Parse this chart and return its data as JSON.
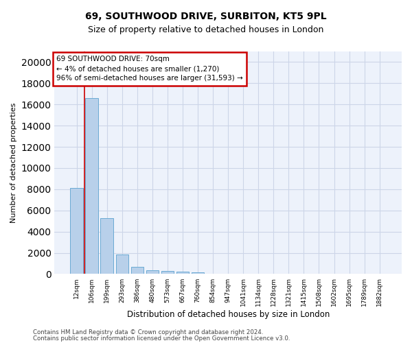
{
  "title1": "69, SOUTHWOOD DRIVE, SURBITON, KT5 9PL",
  "title2": "Size of property relative to detached houses in London",
  "xlabel": "Distribution of detached houses by size in London",
  "ylabel": "Number of detached properties",
  "categories": [
    "12sqm",
    "106sqm",
    "199sqm",
    "293sqm",
    "386sqm",
    "480sqm",
    "573sqm",
    "667sqm",
    "760sqm",
    "854sqm",
    "947sqm",
    "1041sqm",
    "1134sqm",
    "1228sqm",
    "1321sqm",
    "1415sqm",
    "1508sqm",
    "1602sqm",
    "1695sqm",
    "1789sqm",
    "1882sqm"
  ],
  "values": [
    8100,
    16600,
    5300,
    1850,
    700,
    350,
    280,
    220,
    180,
    0,
    0,
    0,
    0,
    0,
    0,
    0,
    0,
    0,
    0,
    0,
    0
  ],
  "bar_color": "#b8d0ea",
  "bar_edge_color": "#6aaad4",
  "annotation_text_line1": "69 SOUTHWOOD DRIVE: 70sqm",
  "annotation_text_line2": "← 4% of detached houses are smaller (1,270)",
  "annotation_text_line3": "96% of semi-detached houses are larger (31,593) →",
  "annotation_box_color": "#ffffff",
  "annotation_box_edge_color": "#cc0000",
  "red_line_x": 0.5,
  "ylim": [
    0,
    21000
  ],
  "yticks": [
    0,
    2000,
    4000,
    6000,
    8000,
    10000,
    12000,
    14000,
    16000,
    18000,
    20000
  ],
  "grid_color": "#ccd5e8",
  "footer1": "Contains HM Land Registry data © Crown copyright and database right 2024.",
  "footer2": "Contains public sector information licensed under the Open Government Licence v3.0.",
  "bg_color": "#edf2fb",
  "title1_fontsize": 10,
  "title2_fontsize": 9
}
